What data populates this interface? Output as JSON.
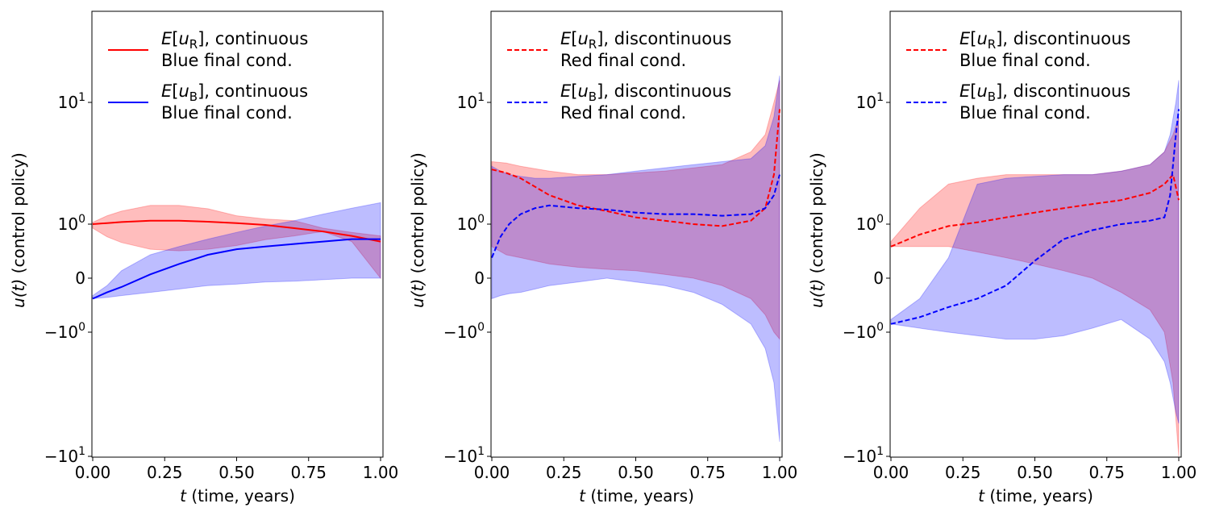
{
  "chart_data": [
    {
      "type": "line",
      "xlabel": "(time, years)",
      "xlabel_var": "t",
      "ylabel": "(control policy)",
      "ylabel_var": "u(t)",
      "xlim": [
        0,
        1
      ],
      "ylim": [
        -15,
        60
      ],
      "yscale": "symlog",
      "x_ticks": [
        {
          "value": 0,
          "label": "0.00"
        },
        {
          "value": 0.25,
          "label": "0.25"
        },
        {
          "value": 0.5,
          "label": "0.50"
        },
        {
          "value": 0.75,
          "label": "0.75"
        },
        {
          "value": 1,
          "label": "1.00"
        }
      ],
      "y_ticks": [
        {
          "value": -10,
          "base": "−10",
          "exp": "1"
        },
        {
          "value": -1,
          "base": "−10",
          "exp": "0"
        },
        {
          "value": 0,
          "base": "0",
          "exp": ""
        },
        {
          "value": 1,
          "base": "10",
          "exp": "0"
        },
        {
          "value": 10,
          "base": "10",
          "exp": "1"
        }
      ],
      "grid": false,
      "legend_position": "top-left",
      "series": [
        {
          "color": "#ff0000",
          "dash": false,
          "legend_line1": "], continuous",
          "legend_sub": "R",
          "legend_line2": "Blue final cond.",
          "x": [
            0,
            0.05,
            0.1,
            0.2,
            0.3,
            0.4,
            0.5,
            0.6,
            0.7,
            0.8,
            0.9,
            1.0
          ],
          "y": [
            1.0,
            1.03,
            1.06,
            1.1,
            1.1,
            1.07,
            1.03,
            0.98,
            0.9,
            0.82,
            0.72,
            0.6
          ],
          "band_lower": [
            0.9,
            0.7,
            0.58,
            0.45,
            0.42,
            0.45,
            0.52,
            0.64,
            0.72,
            0.82,
            0.6,
            0.0
          ],
          "band_upper": [
            1.05,
            1.25,
            1.4,
            1.6,
            1.6,
            1.48,
            1.25,
            1.15,
            1.1,
            0.9,
            0.8,
            0.72
          ]
        },
        {
          "color": "#0000ff",
          "dash": false,
          "legend_line1": "], continuous",
          "legend_sub": "B",
          "legend_line2": "Blue final cond.",
          "x": [
            0,
            0.05,
            0.1,
            0.2,
            0.3,
            0.4,
            0.5,
            0.6,
            0.7,
            0.8,
            0.9,
            1.0
          ],
          "y": [
            -0.3,
            -0.2,
            -0.12,
            0.05,
            0.2,
            0.35,
            0.45,
            0.5,
            0.55,
            0.6,
            0.65,
            0.65
          ],
          "band_lower": [
            -0.3,
            -0.28,
            -0.25,
            -0.2,
            -0.15,
            -0.1,
            -0.08,
            -0.05,
            -0.04,
            -0.02,
            0.0,
            0.0
          ],
          "band_upper": [
            -0.25,
            -0.1,
            0.1,
            0.35,
            0.5,
            0.65,
            0.8,
            0.95,
            1.1,
            1.3,
            1.5,
            1.7
          ]
        }
      ]
    },
    {
      "type": "line",
      "xlabel": "(time, years)",
      "xlabel_var": "t",
      "ylabel": "(control policy)",
      "ylabel_var": "u(t)",
      "xlim": [
        0,
        1
      ],
      "ylim": [
        -15,
        60
      ],
      "yscale": "symlog",
      "x_ticks": [
        {
          "value": 0,
          "label": "0.00"
        },
        {
          "value": 0.25,
          "label": "0.25"
        },
        {
          "value": 0.5,
          "label": "0.50"
        },
        {
          "value": 0.75,
          "label": "0.75"
        },
        {
          "value": 1,
          "label": "1.00"
        }
      ],
      "y_ticks": [
        {
          "value": -10,
          "base": "−10",
          "exp": "1"
        },
        {
          "value": -1,
          "base": "−10",
          "exp": "0"
        },
        {
          "value": 0,
          "base": "0",
          "exp": ""
        },
        {
          "value": 1,
          "base": "10",
          "exp": "0"
        },
        {
          "value": 10,
          "base": "10",
          "exp": "1"
        }
      ],
      "grid": false,
      "legend_position": "top-left",
      "series": [
        {
          "color": "#ff0000",
          "dash": true,
          "legend_line1": "], discontinuous",
          "legend_sub": "R",
          "legend_line2": "Red final cond.",
          "x": [
            0,
            0.05,
            0.1,
            0.2,
            0.3,
            0.4,
            0.5,
            0.6,
            0.7,
            0.8,
            0.9,
            0.95,
            0.98,
            1.0
          ],
          "y": [
            3.3,
            3.1,
            2.8,
            2.0,
            1.6,
            1.4,
            1.2,
            1.1,
            1.0,
            0.95,
            1.1,
            1.5,
            3.0,
            9.0
          ],
          "band_lower": [
            0.5,
            0.35,
            0.3,
            0.2,
            0.15,
            0.12,
            0.1,
            0.05,
            0.0,
            -0.1,
            -0.3,
            -0.6,
            -1.0,
            -1.2
          ],
          "band_upper": [
            3.8,
            3.7,
            3.5,
            3.2,
            3.0,
            3.0,
            3.1,
            3.2,
            3.4,
            3.6,
            4.5,
            6.0,
            10.0,
            14.0
          ]
        },
        {
          "color": "#0000ff",
          "dash": true,
          "legend_line1": "], discontinuous",
          "legend_sub": "B",
          "legend_line2": "Red final cond.",
          "x": [
            0,
            0.03,
            0.06,
            0.1,
            0.15,
            0.2,
            0.3,
            0.4,
            0.5,
            0.6,
            0.7,
            0.8,
            0.9,
            0.95,
            0.98,
            1.0
          ],
          "y": [
            0.3,
            0.7,
            1.0,
            1.3,
            1.5,
            1.6,
            1.5,
            1.45,
            1.35,
            1.3,
            1.3,
            1.25,
            1.3,
            1.5,
            2.0,
            3.0
          ],
          "band_lower": [
            -0.3,
            -0.25,
            -0.22,
            -0.2,
            -0.15,
            -0.1,
            -0.05,
            0.0,
            -0.05,
            -0.1,
            -0.2,
            -0.4,
            -0.8,
            -1.5,
            -3.0,
            -8.0
          ],
          "band_upper": [
            3.5,
            3.2,
            3.0,
            2.9,
            2.8,
            2.8,
            2.9,
            3.0,
            3.2,
            3.4,
            3.6,
            3.8,
            4.0,
            5.0,
            8.0,
            15.0
          ]
        }
      ]
    },
    {
      "type": "line",
      "xlabel": "(time, years)",
      "xlabel_var": "t",
      "ylabel": "(control policy)",
      "ylabel_var": "u(t)",
      "xlim": [
        0,
        1
      ],
      "ylim": [
        -15,
        60
      ],
      "yscale": "symlog",
      "x_ticks": [
        {
          "value": 0,
          "label": "0.00"
        },
        {
          "value": 0.25,
          "label": "0.25"
        },
        {
          "value": 0.5,
          "label": "0.50"
        },
        {
          "value": 0.75,
          "label": "0.75"
        },
        {
          "value": 1,
          "label": "1.00"
        }
      ],
      "y_ticks": [
        {
          "value": -10,
          "base": "−10",
          "exp": "1"
        },
        {
          "value": -1,
          "base": "−10",
          "exp": "0"
        },
        {
          "value": 0,
          "base": "0",
          "exp": ""
        },
        {
          "value": 1,
          "base": "10",
          "exp": "0"
        },
        {
          "value": 10,
          "base": "10",
          "exp": "1"
        }
      ],
      "grid": false,
      "legend_position": "top-left",
      "series": [
        {
          "color": "#ff0000",
          "dash": true,
          "legend_line1": "], discontinuous",
          "legend_sub": "R",
          "legend_line2": "Blue final cond.",
          "x": [
            0,
            0.1,
            0.2,
            0.3,
            0.4,
            0.5,
            0.6,
            0.7,
            0.8,
            0.9,
            0.95,
            0.98,
            1.0
          ],
          "y": [
            0.5,
            0.75,
            0.95,
            1.05,
            1.2,
            1.35,
            1.5,
            1.65,
            1.8,
            2.1,
            2.5,
            3.0,
            1.8
          ],
          "band_lower": [
            0.5,
            0.5,
            0.5,
            0.4,
            0.3,
            0.2,
            0.1,
            0.0,
            -0.2,
            -0.5,
            -1.0,
            -3.0,
            -10.0
          ],
          "band_upper": [
            0.6,
            1.5,
            2.5,
            2.8,
            3.0,
            3.0,
            3.0,
            3.0,
            3.2,
            3.6,
            4.5,
            6.0,
            8.0
          ]
        },
        {
          "color": "#0000ff",
          "dash": true,
          "legend_line1": "], discontinuous",
          "legend_sub": "B",
          "legend_line2": "Blue final cond.",
          "x": [
            0,
            0.1,
            0.2,
            0.3,
            0.4,
            0.5,
            0.6,
            0.7,
            0.8,
            0.9,
            0.95,
            0.97,
            0.99,
            1.0
          ],
          "y": [
            -0.8,
            -0.65,
            -0.45,
            -0.3,
            -0.1,
            0.25,
            0.65,
            0.85,
            1.0,
            1.1,
            1.2,
            2.0,
            6.0,
            9.0
          ],
          "band_lower": [
            -0.8,
            -0.9,
            -1.0,
            -1.1,
            -1.2,
            -1.2,
            -1.1,
            -0.9,
            -0.7,
            -1.2,
            -2.0,
            -3.0,
            -5.0,
            -6.0
          ],
          "band_upper": [
            -0.7,
            -0.3,
            0.3,
            2.5,
            2.8,
            2.9,
            3.0,
            3.0,
            3.2,
            3.6,
            4.5,
            6.0,
            10.0,
            14.0
          ]
        }
      ]
    }
  ]
}
